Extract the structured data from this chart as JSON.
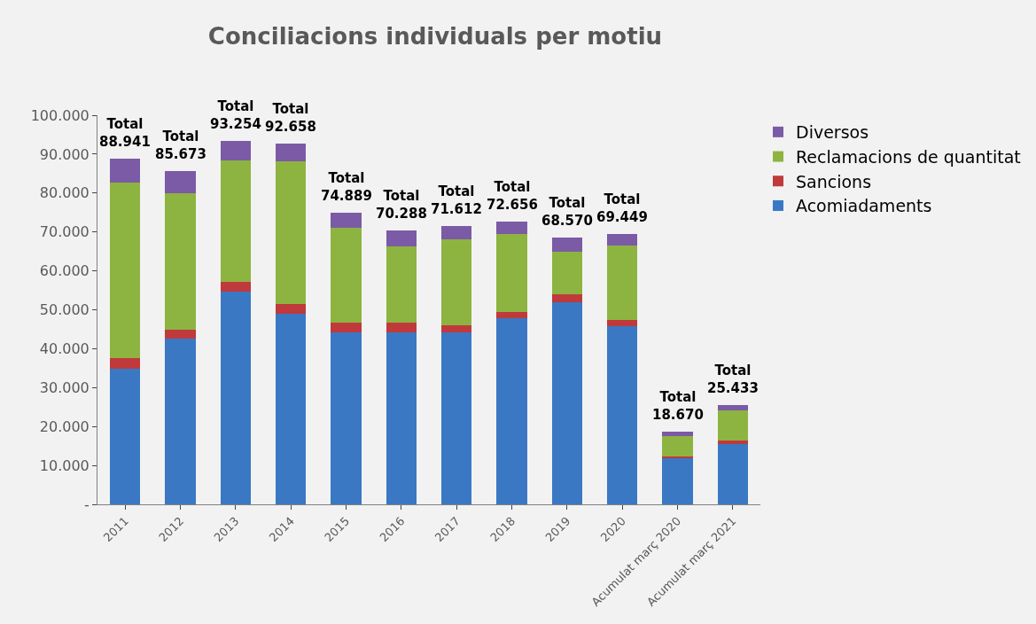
{
  "chart_data": {
    "type": "bar",
    "title": "Conciliacions individuals per motiu",
    "stacked": true,
    "legend": "top right",
    "grid": false,
    "categories": [
      "2011",
      "2012",
      "2013",
      "2014",
      "2015",
      "2016",
      "2017",
      "2018",
      "2019",
      "2020",
      "Acumulat març 2020",
      "Acumulat març 2021"
    ],
    "series": [
      {
        "name": "Acomiadaments",
        "color": "#3a78c4",
        "values": [
          34800,
          42500,
          54600,
          49000,
          44300,
          44300,
          44200,
          47800,
          51900,
          45700,
          11900,
          15500
        ]
      },
      {
        "name": "Sancions",
        "color": "#c0393b",
        "values": [
          2800,
          2300,
          2600,
          2500,
          2300,
          2300,
          1900,
          1700,
          2000,
          1700,
          500,
          800
        ]
      },
      {
        "name": "Reclamacions de quantitat",
        "color": "#8db440",
        "values": [
          45100,
          35100,
          31200,
          36600,
          24500,
          19600,
          21900,
          19900,
          11000,
          19100,
          5100,
          7900
        ]
      },
      {
        "name": "Diversos",
        "color": "#7b5aa6",
        "values": [
          6200,
          5800,
          4900,
          4600,
          3800,
          4100,
          3600,
          3300,
          3700,
          2900,
          1200,
          1200
        ]
      }
    ],
    "totals": [
      "Total\n88.941",
      "Total\n85.673",
      "Total\n93.254",
      "Total\n92.658",
      "Total\n74.889",
      "Total\n70.288",
      "Total\n71.612",
      "Total\n72.656",
      "Total\n68.570",
      "Total\n69.449",
      "Total\n18.670",
      "Total\n25.433"
    ],
    "ylim": [
      0,
      100000
    ],
    "yticks": [
      {
        "value": 0,
        "label": "-"
      },
      {
        "value": 10000,
        "label": "10.000"
      },
      {
        "value": 20000,
        "label": "20.000"
      },
      {
        "value": 30000,
        "label": "30.000"
      },
      {
        "value": 40000,
        "label": "40.000"
      },
      {
        "value": 50000,
        "label": "50.000"
      },
      {
        "value": 60000,
        "label": "60.000"
      },
      {
        "value": 70000,
        "label": "70.000"
      },
      {
        "value": 80000,
        "label": "80.000"
      },
      {
        "value": 90000,
        "label": "90.000"
      },
      {
        "value": 100000,
        "label": "100.000"
      }
    ]
  }
}
